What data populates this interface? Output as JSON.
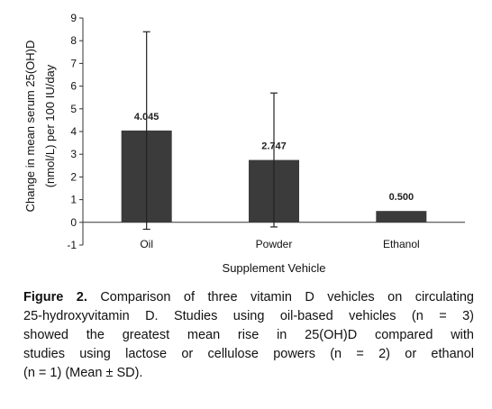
{
  "chart_data": {
    "type": "bar",
    "categories": [
      "Oil",
      "Powder",
      "Ethanol"
    ],
    "values": [
      4.045,
      2.747,
      0.5
    ],
    "value_labels": [
      "4.045",
      "2.747",
      "0.500"
    ],
    "error_sd": [
      4.35,
      2.95,
      0
    ],
    "xlabel": "Supplement Vehicle",
    "ylabel_line1": "Change in mean serum 25(OH)D",
    "ylabel_line2": "(nmol/L) per 100 IU/day",
    "ylim": [
      -1,
      9
    ],
    "yticks": [
      -1,
      0,
      1,
      2,
      3,
      4,
      5,
      6,
      7,
      8,
      9
    ],
    "grid": false,
    "bar_color": "#3b3b3b",
    "error_color": "#222222"
  },
  "caption": {
    "figure_label": "Figure 2.",
    "lines": [
      "Comparison of three vitamin D vehicles on circulating",
      "25-hydroxyvitamin D. Studies using oil-based vehicles (n = 3)",
      "showed the greatest mean rise in 25(OH)D compared with",
      "studies using lactose or cellulose powers (n = 2) or ethanol",
      "(n = 1) (Mean ± SD)."
    ]
  }
}
